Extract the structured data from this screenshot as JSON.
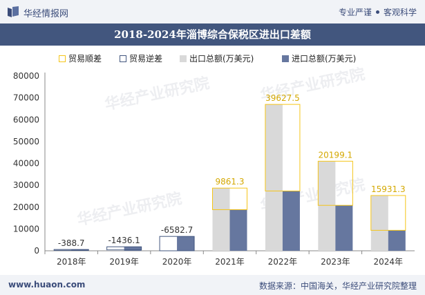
{
  "header": {
    "brand": "华经情报网",
    "tag1": "专业严谨",
    "tag2": "客观科学"
  },
  "footer": {
    "site": "www.huaon.com",
    "source": "数据来源：中国海关，华经产业研究院整理"
  },
  "colors": {
    "surplus": "#f5c518",
    "deficit": "#42567e",
    "export": "#d9d9d9",
    "import": "#66779f",
    "header": "#42567e"
  },
  "chart_data": {
    "type": "bar",
    "title": "2018-2024年淄博综合保税区进出口差额",
    "categories": [
      "2018年",
      "2019年",
      "2020年",
      "2021年",
      "2022年",
      "2023年",
      "2024年"
    ],
    "series": [
      {
        "name": "出口总额(万美元)",
        "values": [
          200,
          400,
          0,
          28700,
          67000,
          41000,
          25300
        ]
      },
      {
        "name": "进口总额(万美元)",
        "values": [
          588.7,
          1836.1,
          6582.7,
          18838.7,
          27372.5,
          20800.9,
          9368.7
        ]
      }
    ],
    "balance": {
      "values": [
        -388.7,
        -1436.1,
        -6582.7,
        9861.3,
        39627.5,
        20199.1,
        15931.3
      ],
      "labels": [
        "-388.7",
        "-1436.1",
        "-6582.7",
        "9861.3",
        "39627.5",
        "20199.1",
        "15931.3"
      ]
    },
    "legend": [
      "贸易顺差",
      "贸易逆差",
      "出口总额(万美元)",
      "进口总额(万美元)"
    ],
    "yticks": [
      "0",
      "10000",
      "20000",
      "30000",
      "40000",
      "50000",
      "60000",
      "70000",
      "80000"
    ],
    "ylim": [
      0,
      80000
    ],
    "legend_position": "top"
  },
  "watermark": "华经产业研究院"
}
